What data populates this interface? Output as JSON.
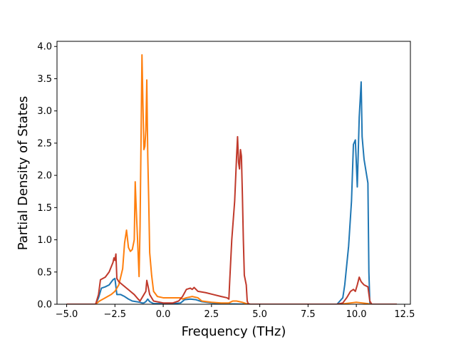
{
  "chart_data": {
    "type": "line",
    "title": "",
    "xlabel": "Frequency (THz)",
    "ylabel": "Partial Density of States",
    "xlim": [
      -5.5,
      12.8
    ],
    "ylim": [
      0,
      4.08
    ],
    "xticks": [
      -5.0,
      -2.5,
      0.0,
      2.5,
      5.0,
      7.5,
      10.0,
      12.5
    ],
    "xtick_labels": [
      "−5.0",
      "−2.5",
      "0.0",
      "2.5",
      "5.0",
      "7.5",
      "10.0",
      "12.5"
    ],
    "yticks": [
      0.0,
      0.5,
      1.0,
      1.5,
      2.0,
      2.5,
      3.0,
      3.5,
      4.0
    ],
    "ytick_labels": [
      "0.0",
      "0.5",
      "1.0",
      "1.5",
      "2.0",
      "2.5",
      "3.0",
      "3.5",
      "4.0"
    ],
    "grid": false,
    "legend": "none",
    "series": [
      {
        "color": "#1f77b4",
        "points": [
          [
            -5.0,
            0
          ],
          [
            -3.5,
            0
          ],
          [
            -3.35,
            0.1
          ],
          [
            -3.2,
            0.25
          ],
          [
            -3.0,
            0.27
          ],
          [
            -2.8,
            0.3
          ],
          [
            -2.6,
            0.38
          ],
          [
            -2.5,
            0.4
          ],
          [
            -2.4,
            0.15
          ],
          [
            -2.2,
            0.15
          ],
          [
            -2.0,
            0.12
          ],
          [
            -1.8,
            0.08
          ],
          [
            -1.6,
            0.05
          ],
          [
            -1.4,
            0.04
          ],
          [
            -1.2,
            0.03
          ],
          [
            -1.1,
            0.02
          ],
          [
            -1.0,
            0.02
          ],
          [
            -0.9,
            0.04
          ],
          [
            -0.8,
            0.08
          ],
          [
            -0.7,
            0.04
          ],
          [
            -0.5,
            0.01
          ],
          [
            0.0,
            0.01
          ],
          [
            0.5,
            0.01
          ],
          [
            0.9,
            0.02
          ],
          [
            1.1,
            0.07
          ],
          [
            1.4,
            0.08
          ],
          [
            1.7,
            0.07
          ],
          [
            2.0,
            0.04
          ],
          [
            2.5,
            0.02
          ],
          [
            3.0,
            0.01
          ],
          [
            3.4,
            0.005
          ],
          [
            4.5,
            0
          ],
          [
            9.0,
            0
          ],
          [
            9.3,
            0.1
          ],
          [
            9.4,
            0.3
          ],
          [
            9.6,
            0.9
          ],
          [
            9.75,
            1.6
          ],
          [
            9.85,
            2.48
          ],
          [
            9.95,
            2.55
          ],
          [
            10.05,
            1.82
          ],
          [
            10.15,
            2.9
          ],
          [
            10.25,
            3.45
          ],
          [
            10.3,
            2.6
          ],
          [
            10.4,
            2.25
          ],
          [
            10.6,
            1.88
          ],
          [
            10.65,
            0.5
          ],
          [
            10.7,
            0.02
          ],
          [
            10.8,
            0
          ],
          [
            12.1,
            0
          ]
        ]
      },
      {
        "color": "#ff7f0e",
        "points": [
          [
            -5.0,
            0
          ],
          [
            -3.5,
            0
          ],
          [
            -3.3,
            0.05
          ],
          [
            -3.0,
            0.1
          ],
          [
            -2.7,
            0.15
          ],
          [
            -2.5,
            0.2
          ],
          [
            -2.3,
            0.3
          ],
          [
            -2.1,
            0.55
          ],
          [
            -2.0,
            0.95
          ],
          [
            -1.9,
            1.15
          ],
          [
            -1.8,
            0.88
          ],
          [
            -1.7,
            0.82
          ],
          [
            -1.6,
            0.85
          ],
          [
            -1.5,
            1.0
          ],
          [
            -1.45,
            1.9
          ],
          [
            -1.4,
            1.5
          ],
          [
            -1.3,
            0.8
          ],
          [
            -1.25,
            0.43
          ],
          [
            -1.2,
            1.2
          ],
          [
            -1.15,
            2.5
          ],
          [
            -1.1,
            3.87
          ],
          [
            -1.05,
            3.1
          ],
          [
            -1.0,
            2.4
          ],
          [
            -0.95,
            2.45
          ],
          [
            -0.9,
            2.7
          ],
          [
            -0.85,
            3.48
          ],
          [
            -0.8,
            2.3
          ],
          [
            -0.75,
            1.6
          ],
          [
            -0.7,
            0.8
          ],
          [
            -0.6,
            0.45
          ],
          [
            -0.5,
            0.2
          ],
          [
            -0.3,
            0.12
          ],
          [
            0.0,
            0.1
          ],
          [
            0.3,
            0.1
          ],
          [
            0.6,
            0.1
          ],
          [
            0.9,
            0.1
          ],
          [
            1.0,
            0.08
          ],
          [
            1.2,
            0.1
          ],
          [
            1.5,
            0.12
          ],
          [
            1.8,
            0.1
          ],
          [
            2.0,
            0.05
          ],
          [
            2.5,
            0.03
          ],
          [
            3.0,
            0.02
          ],
          [
            3.4,
            0.02
          ],
          [
            3.6,
            0.05
          ],
          [
            3.8,
            0.05
          ],
          [
            3.95,
            0.04
          ],
          [
            4.1,
            0.03
          ],
          [
            4.3,
            0.01
          ],
          [
            4.5,
            0
          ],
          [
            9.0,
            0
          ],
          [
            9.4,
            0.01
          ],
          [
            9.7,
            0.02
          ],
          [
            10.0,
            0.03
          ],
          [
            10.3,
            0.02
          ],
          [
            10.6,
            0.01
          ],
          [
            10.7,
            0
          ],
          [
            12.1,
            0
          ]
        ]
      },
      {
        "color": "#c0392b",
        "points": [
          [
            -5.0,
            0
          ],
          [
            -3.5,
            0
          ],
          [
            -3.35,
            0.15
          ],
          [
            -3.25,
            0.38
          ],
          [
            -3.0,
            0.42
          ],
          [
            -2.8,
            0.5
          ],
          [
            -2.6,
            0.65
          ],
          [
            -2.55,
            0.72
          ],
          [
            -2.5,
            0.68
          ],
          [
            -2.45,
            0.78
          ],
          [
            -2.4,
            0.4
          ],
          [
            -2.3,
            0.35
          ],
          [
            -2.1,
            0.3
          ],
          [
            -1.9,
            0.25
          ],
          [
            -1.7,
            0.2
          ],
          [
            -1.5,
            0.15
          ],
          [
            -1.3,
            0.08
          ],
          [
            -1.2,
            0.05
          ],
          [
            -1.1,
            0.1
          ],
          [
            -1.0,
            0.15
          ],
          [
            -0.9,
            0.2
          ],
          [
            -0.85,
            0.37
          ],
          [
            -0.8,
            0.3
          ],
          [
            -0.7,
            0.15
          ],
          [
            -0.6,
            0.1
          ],
          [
            -0.5,
            0.05
          ],
          [
            0.0,
            0.02
          ],
          [
            0.5,
            0.02
          ],
          [
            0.8,
            0.05
          ],
          [
            1.0,
            0.12
          ],
          [
            1.2,
            0.23
          ],
          [
            1.4,
            0.25
          ],
          [
            1.5,
            0.23
          ],
          [
            1.6,
            0.26
          ],
          [
            1.8,
            0.2
          ],
          [
            2.2,
            0.18
          ],
          [
            2.6,
            0.15
          ],
          [
            3.0,
            0.12
          ],
          [
            3.3,
            0.1
          ],
          [
            3.4,
            0.08
          ],
          [
            3.45,
            0.4
          ],
          [
            3.55,
            1.0
          ],
          [
            3.7,
            1.6
          ],
          [
            3.8,
            2.3
          ],
          [
            3.85,
            2.6
          ],
          [
            3.9,
            2.2
          ],
          [
            3.95,
            2.1
          ],
          [
            4.0,
            2.4
          ],
          [
            4.05,
            2.3
          ],
          [
            4.1,
            1.7
          ],
          [
            4.15,
            1.0
          ],
          [
            4.2,
            0.45
          ],
          [
            4.3,
            0.3
          ],
          [
            4.35,
            0.05
          ],
          [
            4.4,
            0.01
          ],
          [
            4.5,
            0
          ],
          [
            9.0,
            0
          ],
          [
            9.3,
            0.02
          ],
          [
            9.5,
            0.1
          ],
          [
            9.7,
            0.2
          ],
          [
            9.85,
            0.23
          ],
          [
            9.95,
            0.2
          ],
          [
            10.05,
            0.3
          ],
          [
            10.15,
            0.42
          ],
          [
            10.25,
            0.35
          ],
          [
            10.4,
            0.3
          ],
          [
            10.6,
            0.27
          ],
          [
            10.7,
            0.05
          ],
          [
            10.8,
            0
          ],
          [
            12.1,
            0
          ]
        ]
      }
    ]
  }
}
